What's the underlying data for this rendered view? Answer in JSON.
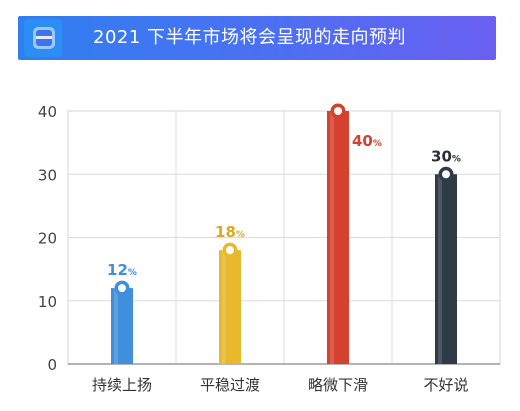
{
  "header": {
    "title": "2021 下半年市场将会呈现的走向预判"
  },
  "chart_data": {
    "type": "bar",
    "title": "2021 下半年市场将会呈现的走向预判",
    "categories": [
      "持续上扬",
      "平稳过渡",
      "略微下滑",
      "不好说"
    ],
    "values": [
      12,
      18,
      40,
      30
    ],
    "value_unit": "%",
    "data_labels": [
      "12",
      "18",
      "40",
      "30"
    ],
    "yticks": [
      "0",
      "10",
      "20",
      "30",
      "40"
    ],
    "ylim": [
      0,
      40
    ],
    "xlabel": "",
    "ylabel": "",
    "grid": true,
    "colors": [
      "#3f8fdc",
      "#e8b92c",
      "#d4412e",
      "#2f3b47"
    ],
    "label_colors": [
      "#3f8fdc",
      "#e0a820",
      "#d4412e",
      "#2a2f38"
    ]
  }
}
